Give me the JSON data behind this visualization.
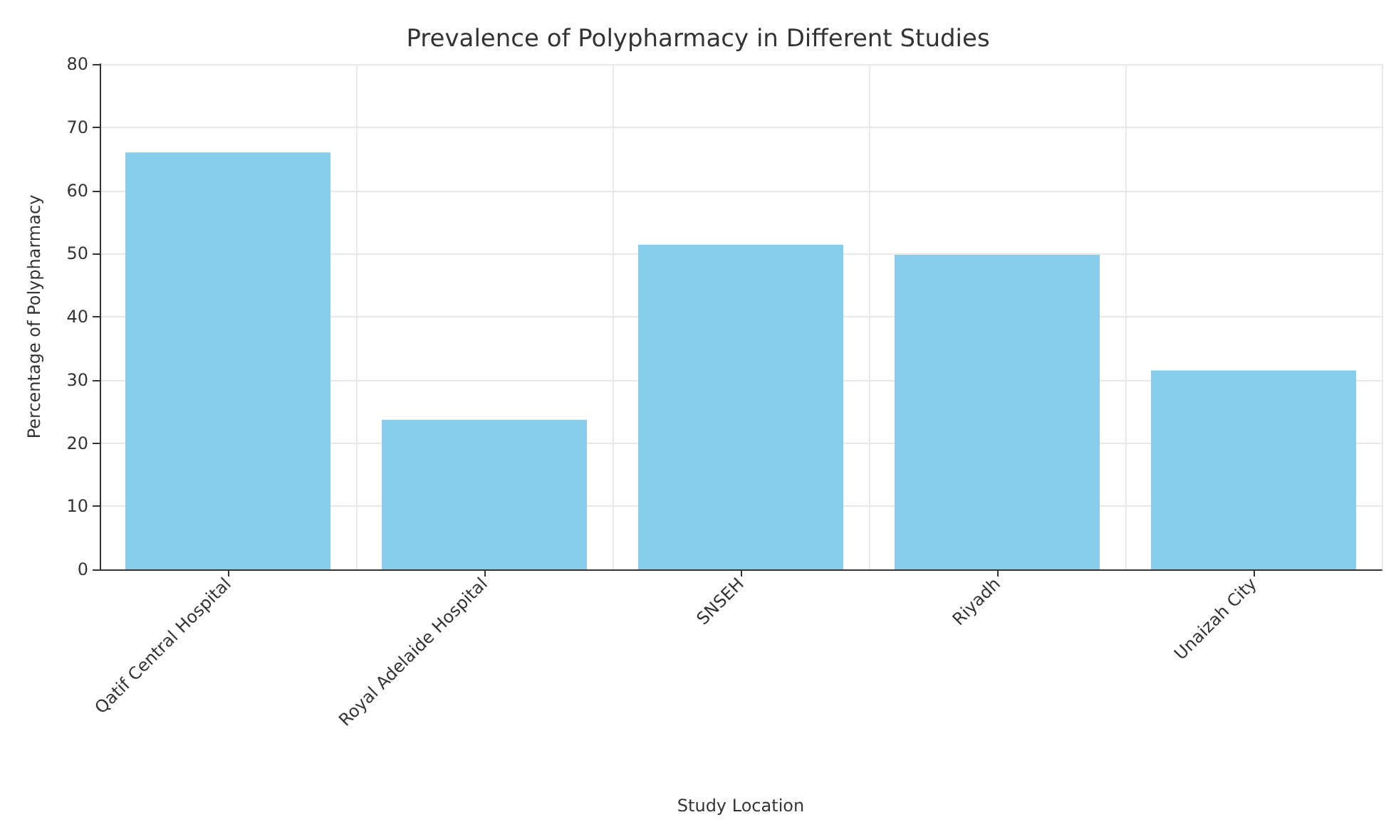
{
  "chart_data": {
    "type": "bar",
    "title": "Prevalence of Polypharmacy in Different Studies",
    "xlabel": "Study Location",
    "ylabel": "Percentage of Polypharmacy",
    "categories": [
      "Qatif Central Hospital",
      "Royal Adelaide Hospital",
      "SNSEH",
      "Riyadh",
      "Unaizah City"
    ],
    "values": [
      66,
      23.7,
      51.4,
      49.8,
      31.5
    ],
    "color": "#87ceeb",
    "ylim": [
      0,
      80
    ],
    "yticks": [
      0,
      10,
      20,
      30,
      40,
      50,
      60,
      70,
      80
    ],
    "grid": true
  }
}
